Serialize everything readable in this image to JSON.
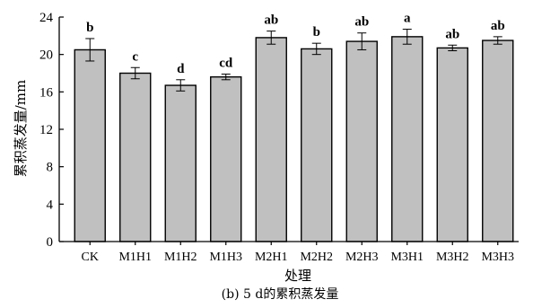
{
  "chart_data": {
    "type": "bar",
    "categories": [
      "CK",
      "M1H1",
      "M1H2",
      "M1H3",
      "M2H1",
      "M2H2",
      "M2H3",
      "M3H1",
      "M3H2",
      "M3H3"
    ],
    "values": [
      20.5,
      18.0,
      16.7,
      17.6,
      21.8,
      20.6,
      21.4,
      21.9,
      20.7,
      21.5
    ],
    "errors": [
      1.2,
      0.6,
      0.6,
      0.3,
      0.7,
      0.6,
      0.9,
      0.8,
      0.3,
      0.4
    ],
    "significance": [
      "b",
      "c",
      "d",
      "cd",
      "ab",
      "b",
      "ab",
      "a",
      "ab",
      "ab"
    ],
    "ylim": [
      0,
      24
    ],
    "yticks": [
      0,
      4,
      8,
      12,
      16,
      20,
      24
    ],
    "xlabel": "处理",
    "ylabel": "累积蒸发量/mm",
    "caption": "(b) 5 d的累积蒸发量",
    "grid": false,
    "bar_color": "#c0c0c0"
  }
}
